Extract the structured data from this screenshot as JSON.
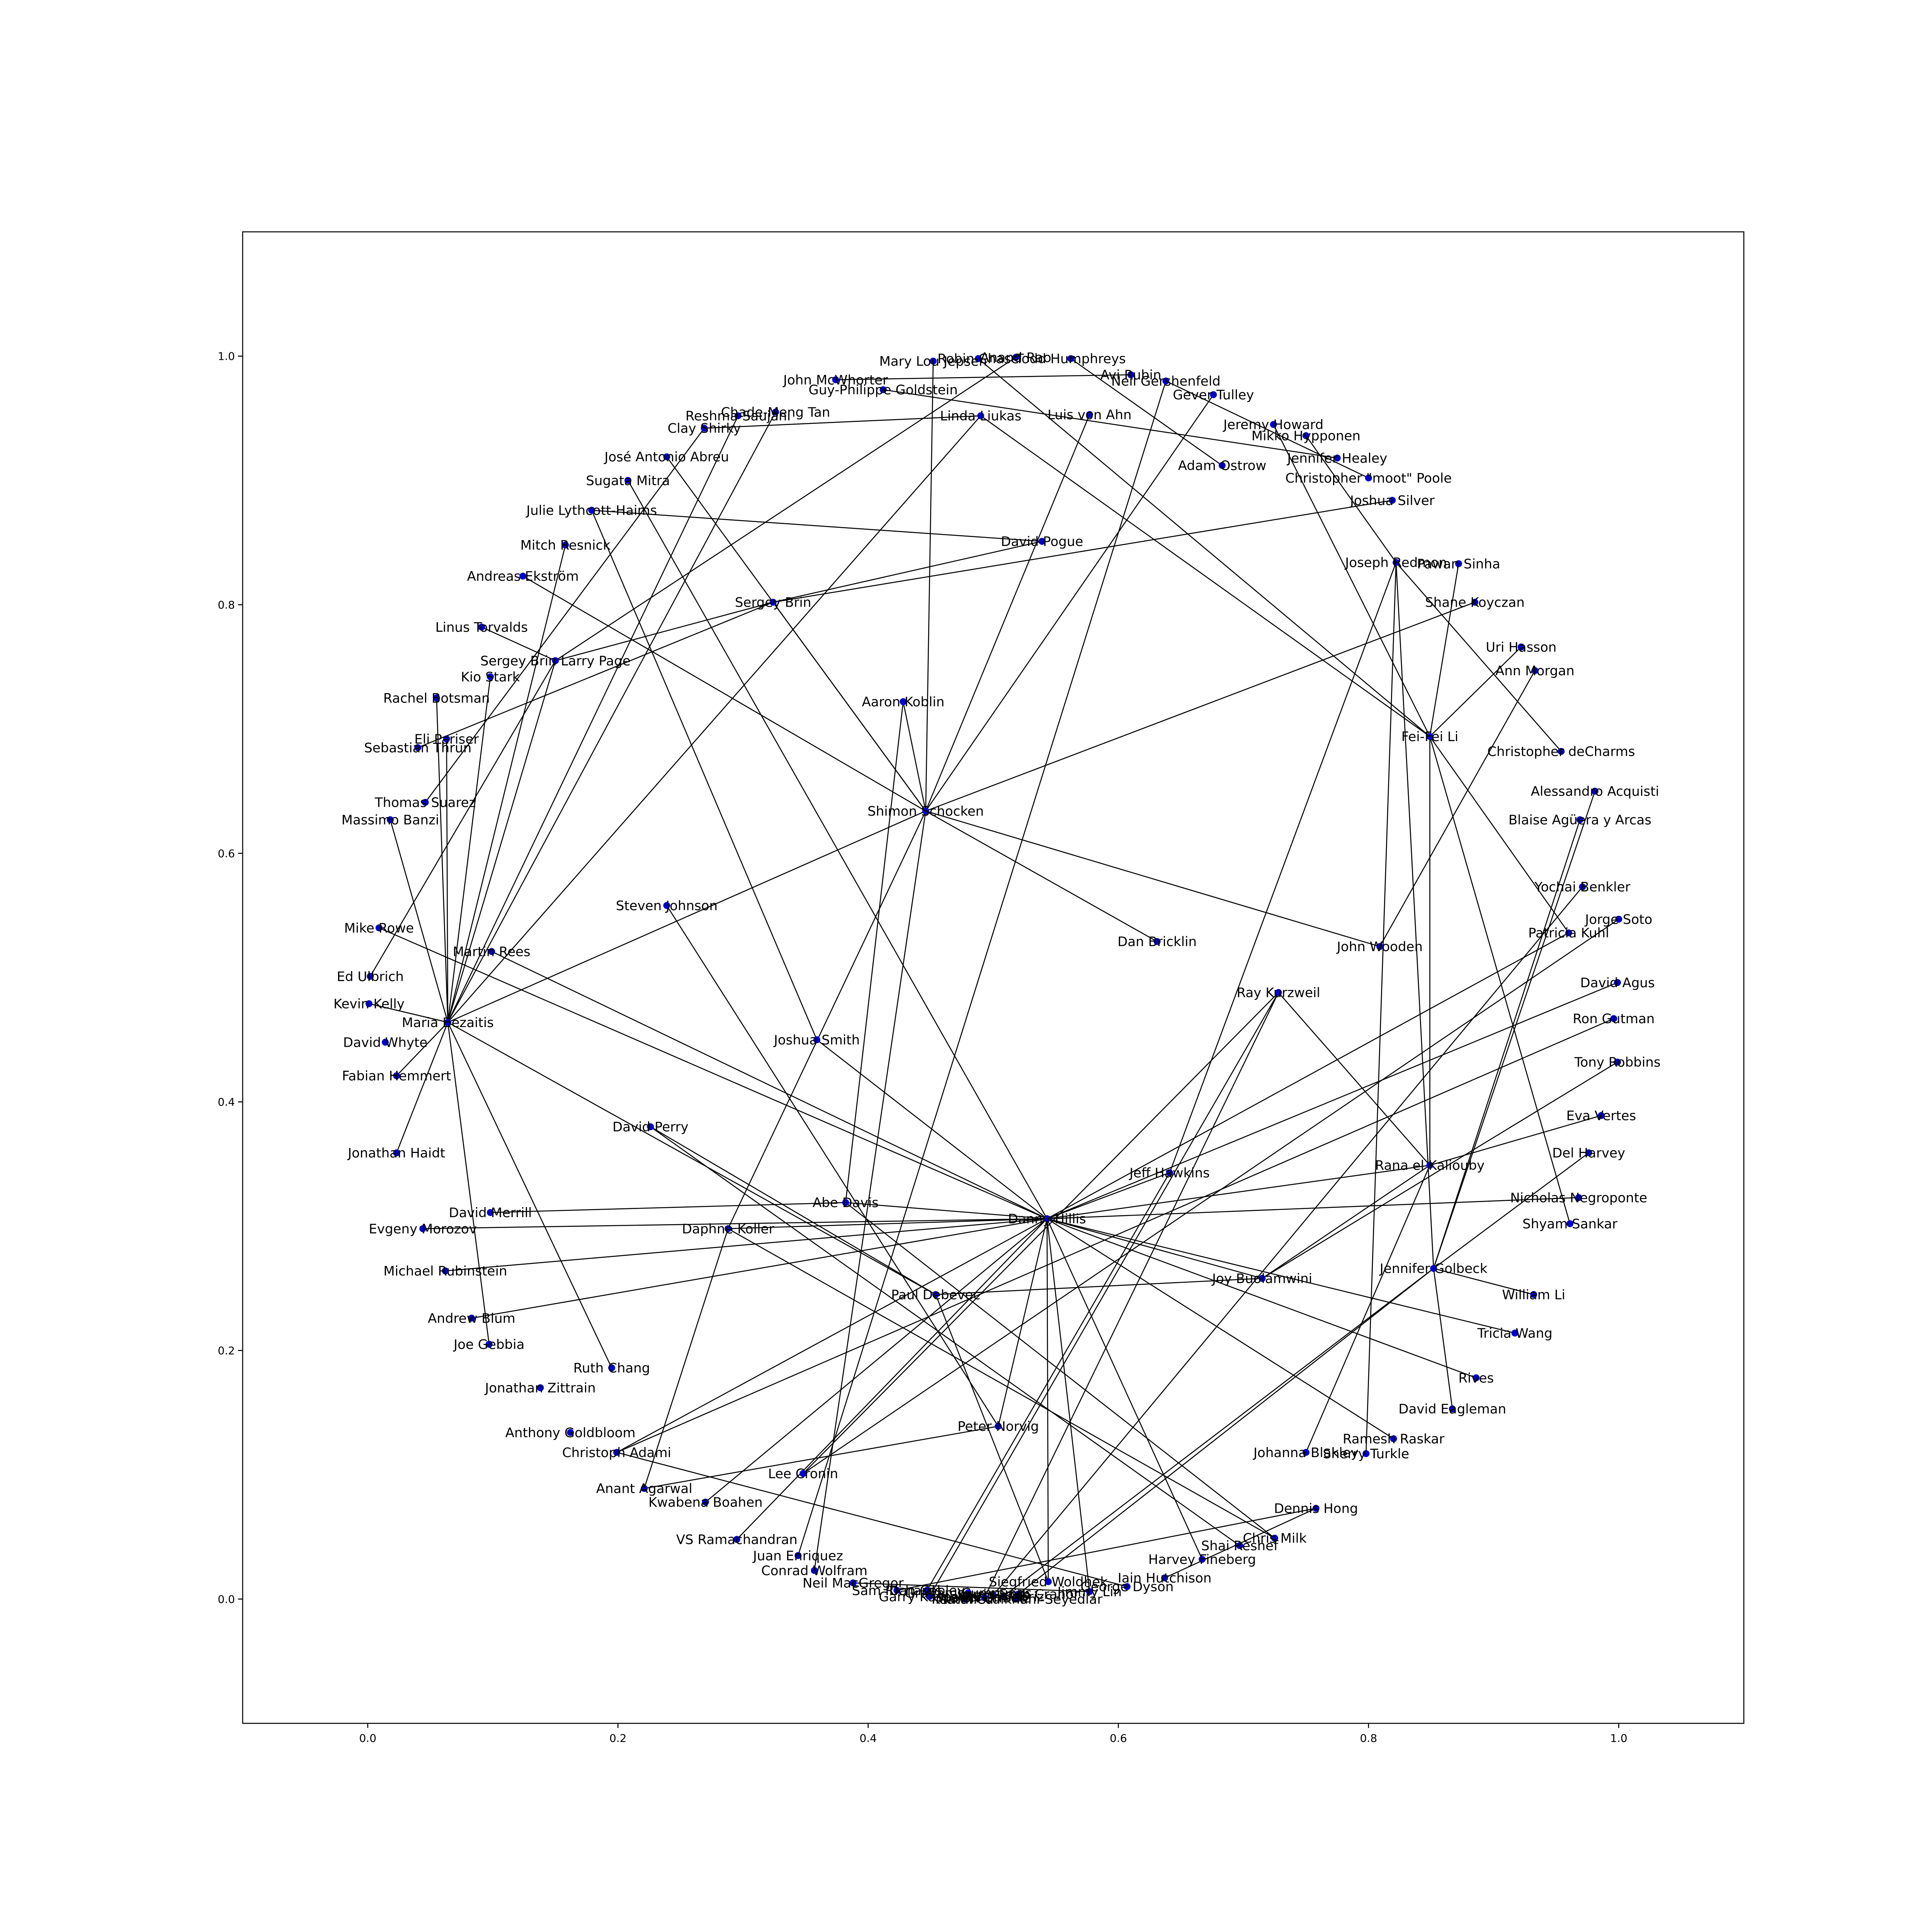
{
  "chart_data": {
    "type": "network",
    "xlim": [
      -0.1,
      1.1
    ],
    "ylim": [
      -0.1,
      1.1
    ],
    "x_ticks": [
      0.0,
      0.2,
      0.4,
      0.6,
      0.8,
      1.0
    ],
    "y_ticks": [
      0.0,
      0.2,
      0.4,
      0.6,
      0.8,
      1.0
    ],
    "x_tick_labels": [
      "0.0",
      "0.2",
      "0.4",
      "0.6",
      "0.8",
      "1.0"
    ],
    "y_tick_labels": [
      "0.0",
      "0.2",
      "0.4",
      "0.6",
      "0.8",
      "1.0"
    ],
    "grid": false,
    "node_color": "#0000cc",
    "edge_color": "#000000",
    "nodes": [
      {
        "label": "Danny Hillis",
        "x": 0.543,
        "y": 0.306
      },
      {
        "label": "Shimon Schocken",
        "x": 0.446,
        "y": 0.634
      },
      {
        "label": "Sergey Brin",
        "x": 0.324,
        "y": 0.802
      },
      {
        "label": "Sergey Brin  Larry Page",
        "x": 0.15,
        "y": 0.755
      },
      {
        "label": "Maria Bezaitis",
        "x": 0.064,
        "y": 0.464
      },
      {
        "label": "Fei-Fei Li",
        "x": 0.849,
        "y": 0.694
      },
      {
        "label": "Jennifer Golbeck",
        "x": 0.852,
        "y": 0.266
      },
      {
        "label": "Rana el Kaliouby",
        "x": 0.849,
        "y": 0.349
      },
      {
        "label": "Mary Lou Jepsen",
        "x": 0.452,
        "y": 0.996
      },
      {
        "label": "Robin Chase",
        "x": 0.488,
        "y": 0.998
      },
      {
        "label": "Anand Rao",
        "x": 0.518,
        "y": 0.999
      },
      {
        "label": "Todd Humphreys",
        "x": 0.562,
        "y": 0.998
      },
      {
        "label": "Avi Rubin",
        "x": 0.61,
        "y": 0.985
      },
      {
        "label": "Neil Gershenfeld",
        "x": 0.638,
        "y": 0.98
      },
      {
        "label": "Gever Tulley",
        "x": 0.676,
        "y": 0.969
      },
      {
        "label": "John McWhorter",
        "x": 0.374,
        "y": 0.981
      },
      {
        "label": "Guy-Philippe Goldstein",
        "x": 0.412,
        "y": 0.973
      },
      {
        "label": "Chade-Meng Tan",
        "x": 0.326,
        "y": 0.955
      },
      {
        "label": "Reshma Saujani",
        "x": 0.296,
        "y": 0.952
      },
      {
        "label": "Clay Shirky",
        "x": 0.269,
        "y": 0.942
      },
      {
        "label": "Linda Liukas",
        "x": 0.49,
        "y": 0.952
      },
      {
        "label": "Luis von Ahn",
        "x": 0.577,
        "y": 0.953
      },
      {
        "label": "Jeremy Howard",
        "x": 0.724,
        "y": 0.945
      },
      {
        "label": "Mikko Hypponen",
        "x": 0.75,
        "y": 0.936
      },
      {
        "label": "Jennifer Healey",
        "x": 0.775,
        "y": 0.918
      },
      {
        "label": "Adam Ostrow",
        "x": 0.683,
        "y": 0.912
      },
      {
        "label": "Christopher \"moot\" Poole",
        "x": 0.8,
        "y": 0.902
      },
      {
        "label": "Joshua Silver",
        "x": 0.819,
        "y": 0.884
      },
      {
        "label": "José Antonio Abreu",
        "x": 0.239,
        "y": 0.919
      },
      {
        "label": "Sugata Mitra",
        "x": 0.208,
        "y": 0.9
      },
      {
        "label": "Julie Lythcott-Haims",
        "x": 0.179,
        "y": 0.876
      },
      {
        "label": "Mitch Resnick",
        "x": 0.158,
        "y": 0.848
      },
      {
        "label": "Andreas Ekström",
        "x": 0.124,
        "y": 0.823
      },
      {
        "label": "David Pogue",
        "x": 0.539,
        "y": 0.851
      },
      {
        "label": "Joseph Redmon",
        "x": 0.822,
        "y": 0.834
      },
      {
        "label": "Pawan Sinha",
        "x": 0.872,
        "y": 0.833
      },
      {
        "label": "Shane Koyczan",
        "x": 0.885,
        "y": 0.802
      },
      {
        "label": "Linus Torvalds",
        "x": 0.091,
        "y": 0.782
      },
      {
        "label": "Uri Hasson",
        "x": 0.922,
        "y": 0.766
      },
      {
        "label": "Kio Stark",
        "x": 0.098,
        "y": 0.742
      },
      {
        "label": "Ann Morgan",
        "x": 0.933,
        "y": 0.747
      },
      {
        "label": "Aaron Koblin",
        "x": 0.428,
        "y": 0.722
      },
      {
        "label": "Rachel Botsman",
        "x": 0.055,
        "y": 0.725
      },
      {
        "label": "Eli Pariser",
        "x": 0.063,
        "y": 0.692
      },
      {
        "label": "Sebastian Thrun",
        "x": 0.04,
        "y": 0.685
      },
      {
        "label": "Christopher deCharms",
        "x": 0.954,
        "y": 0.682
      },
      {
        "label": "Alessandro Acquisti",
        "x": 0.981,
        "y": 0.65
      },
      {
        "label": "Thomas Suarez",
        "x": 0.046,
        "y": 0.641
      },
      {
        "label": "Massimo Banzi",
        "x": 0.018,
        "y": 0.627
      },
      {
        "label": "Blaise Agüera y Arcas",
        "x": 0.969,
        "y": 0.627
      },
      {
        "label": "Yochai Benkler",
        "x": 0.971,
        "y": 0.573
      },
      {
        "label": "Steven Johnson",
        "x": 0.239,
        "y": 0.558
      },
      {
        "label": "Jorge Soto",
        "x": 1.0,
        "y": 0.547
      },
      {
        "label": "Mike Rowe",
        "x": 0.009,
        "y": 0.54
      },
      {
        "label": "Patricia Kuhl",
        "x": 0.96,
        "y": 0.536
      },
      {
        "label": "Dan Bricklin",
        "x": 0.631,
        "y": 0.529
      },
      {
        "label": "John Wooden",
        "x": 0.809,
        "y": 0.525
      },
      {
        "label": "Martin Rees",
        "x": 0.099,
        "y": 0.521
      },
      {
        "label": "Ed Ulbrich",
        "x": 0.002,
        "y": 0.501
      },
      {
        "label": "David Agus",
        "x": 0.999,
        "y": 0.496
      },
      {
        "label": "Ray Kurzweil",
        "x": 0.728,
        "y": 0.488
      },
      {
        "label": "Kevin Kelly",
        "x": 0.001,
        "y": 0.479
      },
      {
        "label": "Ron Gutman",
        "x": 0.996,
        "y": 0.467
      },
      {
        "label": "Joshua Smith",
        "x": 0.359,
        "y": 0.45
      },
      {
        "label": "David Whyte",
        "x": 0.014,
        "y": 0.448
      },
      {
        "label": "Tony Robbins",
        "x": 0.999,
        "y": 0.432
      },
      {
        "label": "Fabian Hemmert",
        "x": 0.023,
        "y": 0.421
      },
      {
        "label": "Eva Vertes",
        "x": 0.986,
        "y": 0.389
      },
      {
        "label": "David Perry",
        "x": 0.226,
        "y": 0.38
      },
      {
        "label": "Jonathan Haidt",
        "x": 0.023,
        "y": 0.359
      },
      {
        "label": "Del Harvey",
        "x": 0.976,
        "y": 0.359
      },
      {
        "label": "Jeff Hawkins",
        "x": 0.641,
        "y": 0.343
      },
      {
        "label": "Abe Davis",
        "x": 0.382,
        "y": 0.319
      },
      {
        "label": "Nicholas Negroponte",
        "x": 0.968,
        "y": 0.323
      },
      {
        "label": "David Merrill",
        "x": 0.098,
        "y": 0.311
      },
      {
        "label": "Shyam Sankar",
        "x": 0.961,
        "y": 0.302
      },
      {
        "label": "Evgeny Morozov",
        "x": 0.044,
        "y": 0.298
      },
      {
        "label": "Daphne Koller",
        "x": 0.288,
        "y": 0.298
      },
      {
        "label": "Michael Rubinstein",
        "x": 0.062,
        "y": 0.264
      },
      {
        "label": "Joy Buolamwini",
        "x": 0.715,
        "y": 0.258
      },
      {
        "label": "Paul Debevec",
        "x": 0.454,
        "y": 0.245
      },
      {
        "label": "William Li",
        "x": 0.932,
        "y": 0.245
      },
      {
        "label": "Andrew Blum",
        "x": 0.083,
        "y": 0.226
      },
      {
        "label": "Tricia Wang",
        "x": 0.917,
        "y": 0.214
      },
      {
        "label": "Joe Gebbia",
        "x": 0.097,
        "y": 0.205
      },
      {
        "label": "Ruth Chang",
        "x": 0.195,
        "y": 0.186
      },
      {
        "label": "Rives",
        "x": 0.886,
        "y": 0.178
      },
      {
        "label": "Jonathan Zittrain",
        "x": 0.138,
        "y": 0.17
      },
      {
        "label": "David Eagleman",
        "x": 0.867,
        "y": 0.153
      },
      {
        "label": "Peter Norvig",
        "x": 0.504,
        "y": 0.139
      },
      {
        "label": "Anthony Goldbloom",
        "x": 0.162,
        "y": 0.134
      },
      {
        "label": "Ramesh Raskar",
        "x": 0.82,
        "y": 0.129
      },
      {
        "label": "Christoph Adami",
        "x": 0.199,
        "y": 0.118
      },
      {
        "label": "Johanna Blakley",
        "x": 0.75,
        "y": 0.118
      },
      {
        "label": "Sherry Turkle",
        "x": 0.798,
        "y": 0.117
      },
      {
        "label": "Lee Cronin",
        "x": 0.348,
        "y": 0.101
      },
      {
        "label": "Anant Agarwal",
        "x": 0.221,
        "y": 0.089
      },
      {
        "label": "Kwabena Boahen",
        "x": 0.27,
        "y": 0.078
      },
      {
        "label": "Dennis Hong",
        "x": 0.758,
        "y": 0.073
      },
      {
        "label": "Chris Milk",
        "x": 0.725,
        "y": 0.049
      },
      {
        "label": "VS Ramachandran",
        "x": 0.295,
        "y": 0.048
      },
      {
        "label": "Shai Reshef",
        "x": 0.697,
        "y": 0.043
      },
      {
        "label": "Juan Enriquez",
        "x": 0.344,
        "y": 0.035
      },
      {
        "label": "Harvey Fineberg",
        "x": 0.667,
        "y": 0.032
      },
      {
        "label": "Conrad Wolfram",
        "x": 0.357,
        "y": 0.023
      },
      {
        "label": "Iain Hutchison",
        "x": 0.637,
        "y": 0.017
      },
      {
        "label": "Siegfried Woldhek",
        "x": 0.544,
        "y": 0.014
      },
      {
        "label": "Neil MacGregor",
        "x": 0.388,
        "y": 0.013
      },
      {
        "label": "George Dyson",
        "x": 0.607,
        "y": 0.01
      },
      {
        "label": "Jimmy Lin",
        "x": 0.577,
        "y": 0.006
      },
      {
        "label": "Sam Richards",
        "x": 0.423,
        "y": 0.007
      },
      {
        "label": "Dan Cobley",
        "x": 0.447,
        "y": 0.007
      },
      {
        "label": "Graham Cummings",
        "x": 0.48,
        "y": 0.005
      },
      {
        "label": "Garry Kasparov",
        "x": 0.449,
        "y": 0.002
      },
      {
        "label": "Matthieu",
        "x": 0.477,
        "y": 0.0
      },
      {
        "label": "Meron Gribetz",
        "x": 0.493,
        "y": 0.001
      },
      {
        "label": "Sam Harris",
        "x": 0.5,
        "y": 0.003
      },
      {
        "label": "Parisa Tabriz",
        "x": 0.508,
        "y": 0.002
      },
      {
        "label": "Lorrie Faith Cranor",
        "x": 0.52,
        "y": 0.004
      },
      {
        "label": "Kamal Ordikhani-Seyedlar",
        "x": 0.519,
        "y": 0.0
      }
    ],
    "edges": [
      [
        "Danny Hillis",
        "Joshua Smith"
      ],
      [
        "Danny Hillis",
        "Mike Rowe"
      ],
      [
        "Danny Hillis",
        "Martin Rees"
      ],
      [
        "Danny Hillis",
        "Abe Davis"
      ],
      [
        "Danny Hillis",
        "Daphne Koller"
      ],
      [
        "Danny Hillis",
        "Evgeny Morozov"
      ],
      [
        "Danny Hillis",
        "Michael Rubinstein"
      ],
      [
        "Danny Hillis",
        "Andrew Blum"
      ],
      [
        "Danny Hillis",
        "Christoph Adami"
      ],
      [
        "Danny Hillis",
        "Kwabena Boahen"
      ],
      [
        "Danny Hillis",
        "VS Ramachandran"
      ],
      [
        "Danny Hillis",
        "Peter Norvig"
      ],
      [
        "Danny Hillis",
        "Siegfried Woldhek"
      ],
      [
        "Danny Hillis",
        "Jimmy Lin"
      ],
      [
        "Danny Hillis",
        "Harvey Fineberg"
      ],
      [
        "Danny Hillis",
        "Joy Buolamwini"
      ],
      [
        "Danny Hillis",
        "Ramesh Raskar"
      ],
      [
        "Danny Hillis",
        "Rives"
      ],
      [
        "Danny Hillis",
        "Tricia Wang"
      ],
      [
        "Danny Hillis",
        "Nicholas Negroponte"
      ],
      [
        "Danny Hillis",
        "Rana el Kaliouby"
      ],
      [
        "Danny Hillis",
        "Patricia Kuhl"
      ],
      [
        "Danny Hillis",
        "David Agus"
      ],
      [
        "Danny Hillis",
        "Sugata Mitra"
      ],
      [
        "Danny Hillis",
        "Jeff Hawkins"
      ],
      [
        "Shimon Schocken",
        "Sergey Brin"
      ],
      [
        "Shimon Schocken",
        "Andreas Ekström"
      ],
      [
        "Shimon Schocken",
        "Mary Lou Jepsen"
      ],
      [
        "Shimon Schocken",
        "Luis von Ahn"
      ],
      [
        "Shimon Schocken",
        "Gever Tulley"
      ],
      [
        "Shimon Schocken",
        "Shane Koyczan"
      ],
      [
        "Shimon Schocken",
        "Dan Bricklin"
      ],
      [
        "Shimon Schocken",
        "John Wooden"
      ],
      [
        "Shimon Schocken",
        "Maria Bezaitis"
      ],
      [
        "Shimon Schocken",
        "Daphne Koller"
      ],
      [
        "Shimon Schocken",
        "José Antonio Abreu"
      ],
      [
        "Shimon Schocken",
        "Conrad Wolfram"
      ],
      [
        "Shimon Schocken",
        "Aaron Koblin"
      ],
      [
        "Sergey Brin",
        "David Pogue"
      ],
      [
        "Sergey Brin",
        "Joshua Silver"
      ],
      [
        "Sergey Brin",
        "Sergey Brin  Larry Page"
      ],
      [
        "Sergey Brin",
        "Sebastian Thrun"
      ],
      [
        "Sergey Brin  Larry Page",
        "Anand Rao"
      ],
      [
        "Sergey Brin  Larry Page",
        "Linus Torvalds"
      ],
      [
        "Sergey Brin  Larry Page",
        "Ed Ulbrich"
      ],
      [
        "Sergey Brin  Larry Page",
        "Maria Bezaitis"
      ],
      [
        "Maria Bezaitis",
        "Rachel Botsman"
      ],
      [
        "Maria Bezaitis",
        "Eli Pariser"
      ],
      [
        "Maria Bezaitis",
        "Kevin Kelly"
      ],
      [
        "Maria Bezaitis",
        "Fabian Hemmert"
      ],
      [
        "Maria Bezaitis",
        "Joe Gebbia"
      ],
      [
        "Maria Bezaitis",
        "Ruth Chang"
      ],
      [
        "Maria Bezaitis",
        "Paul Debevec"
      ],
      [
        "Maria Bezaitis",
        "Kio Stark"
      ],
      [
        "Maria Bezaitis",
        "Chade-Meng Tan"
      ],
      [
        "Maria Bezaitis",
        "Reshma Saujani"
      ],
      [
        "Maria Bezaitis",
        "Massimo Banzi"
      ],
      [
        "Maria Bezaitis",
        "Mitch Resnick"
      ],
      [
        "Maria Bezaitis",
        "Linda Liukas"
      ],
      [
        "Fei-Fei Li",
        "Linda Liukas"
      ],
      [
        "Fei-Fei Li",
        "Jeremy Howard"
      ],
      [
        "Fei-Fei Li",
        "Uri Hasson"
      ],
      [
        "Fei-Fei Li",
        "Pawan Sinha"
      ],
      [
        "Fei-Fei Li",
        "Patricia Kuhl"
      ],
      [
        "Fei-Fei Li",
        "Shyam Sankar"
      ],
      [
        "Fei-Fei Li",
        "Rana el Kaliouby"
      ],
      [
        "Fei-Fei Li",
        "Robin Chase"
      ],
      [
        "Jennifer Golbeck",
        "Joseph Redmon"
      ],
      [
        "Jennifer Golbeck",
        "William Li"
      ],
      [
        "Jennifer Golbeck",
        "Lorrie Faith Cranor"
      ],
      [
        "Jennifer Golbeck",
        "Parisa Tabriz"
      ],
      [
        "Jennifer Golbeck",
        "Alessandro Acquisti"
      ],
      [
        "Jennifer Golbeck",
        "David Eagleman"
      ],
      [
        "Jennifer Golbeck",
        "Blaise Agüera y Arcas"
      ],
      [
        "Rana el Kaliouby",
        "Johanna Blakley"
      ],
      [
        "Rana el Kaliouby",
        "Joy Buolamwini"
      ],
      [
        "Rana el Kaliouby",
        "Eva Vertes"
      ],
      [
        "Rana el Kaliouby",
        "Ray Kurzweil"
      ],
      [
        "Ray Kurzweil",
        "Lee Cronin"
      ],
      [
        "Ray Kurzweil",
        "Meron Gribetz"
      ],
      [
        "Joseph Redmon",
        "Jeff Hawkins"
      ],
      [
        "Joseph Redmon",
        "Christopher deCharms"
      ],
      [
        "Joseph Redmon",
        "Mikko Hypponen"
      ],
      [
        "Joseph Redmon",
        "Sherry Turkle"
      ],
      [
        "Jeff Hawkins",
        "Dan Cobley"
      ],
      [
        "Abe Davis",
        "Aaron Koblin"
      ],
      [
        "Abe Davis",
        "David Merrill"
      ],
      [
        "Abe Davis",
        "Chris Milk"
      ],
      [
        "Paul Debevec",
        "Joy Buolamwini"
      ],
      [
        "Paul Debevec",
        "Siegfried Woldhek"
      ],
      [
        "Paul Debevec",
        "David Perry"
      ],
      [
        "David Perry",
        "Shai Reshef"
      ],
      [
        "Daphne Koller",
        "Anant Agarwal"
      ],
      [
        "Daphne Koller",
        "Chris Milk"
      ],
      [
        "Peter Norvig",
        "Anant Agarwal"
      ],
      [
        "Peter Norvig",
        "Steven Johnson"
      ],
      [
        "Dennis Hong",
        "Sam Richards"
      ],
      [
        "Christoph Adami",
        "George Dyson"
      ],
      [
        "Julie Lythcott-Haims",
        "David Pogue"
      ],
      [
        "Julie Lythcott-Haims",
        "Joshua Smith"
      ],
      [
        "Clay Shirky",
        "Linda Liukas"
      ],
      [
        "Clay Shirky",
        "Thomas Suarez"
      ],
      [
        "Juan Enriquez",
        "Neil Gershenfeld"
      ],
      [
        "John McWhorter",
        "Avi Rubin"
      ],
      [
        "Guy-Philippe Goldstein",
        "Jennifer Healey"
      ],
      [
        "Adam Ostrow",
        "Todd Humphreys"
      ],
      [
        "Christopher \"moot\" Poole",
        "Neil Gershenfeld"
      ],
      [
        "Ann Morgan",
        "John Wooden"
      ],
      [
        "Tony Robbins",
        "Joy Buolamwini"
      ],
      [
        "Yochai Benkler",
        "Sam Harris"
      ],
      [
        "Del Harvey",
        "Jennifer Golbeck"
      ],
      [
        "Ron Gutman",
        "Christoph Adami"
      ],
      [
        "Jorge Soto",
        "Lee Cronin"
      ],
      [
        "Jonathan Haidt",
        "Maria Bezaitis"
      ],
      [
        "Iain Hutchison",
        "Dennis Hong"
      ],
      [
        "Neil MacGregor",
        "Jimmy Lin"
      ],
      [
        "Garry Kasparov",
        "Ray Kurzweil"
      ]
    ]
  }
}
